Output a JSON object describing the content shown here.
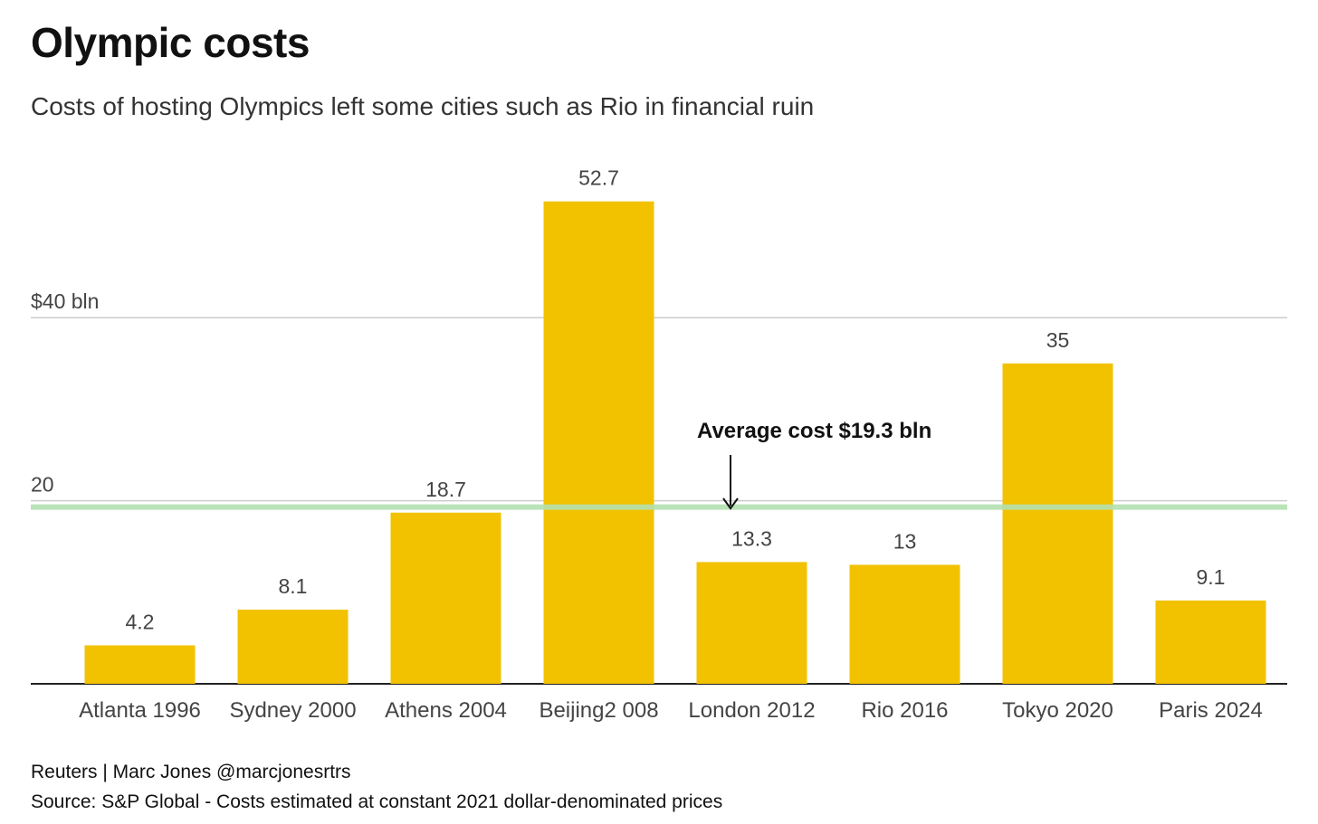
{
  "chart_data": {
    "type": "bar",
    "title": "Olympic costs",
    "subtitle": "Costs of hosting Olympics left some cities such as Rio in financial ruin",
    "categories": [
      "Atlanta 1996",
      "Sydney 2000",
      "Athens 2004",
      "Beijing2 008",
      "London 2012",
      "Rio 2016",
      "Tokyo 2020",
      "Paris 2024"
    ],
    "values": [
      4.2,
      8.1,
      18.7,
      52.7,
      13.3,
      13,
      35,
      9.1
    ],
    "value_labels": [
      "4.2",
      "8.1",
      "18.7",
      "52.7",
      "13.3",
      "13",
      "35",
      "9.1"
    ],
    "ylim": [
      0,
      55
    ],
    "yticks": [
      20,
      40
    ],
    "ytick_labels": [
      "20",
      "$40 bln"
    ],
    "grid": true,
    "bar_color": "#F2C200",
    "average": {
      "value": 19.3,
      "label": "Average cost $19.3 bln",
      "color": "#B3E0B0"
    },
    "credit": "Reuters | Marc Jones @marcjonesrtrs",
    "source": "Source: S&P Global - Costs estimated at constant 2021 dollar-denominated prices"
  }
}
